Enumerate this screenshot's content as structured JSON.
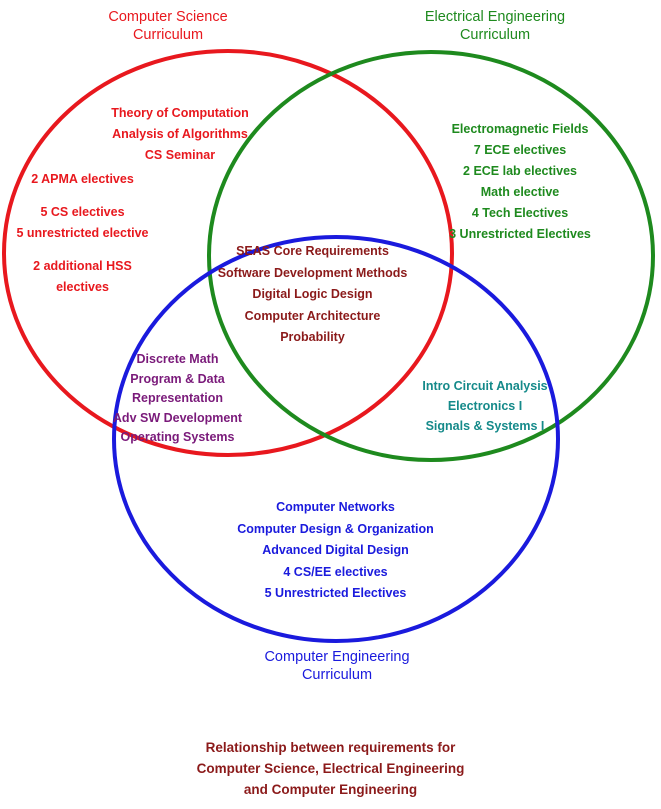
{
  "circles": {
    "cs": {
      "color": "#e8181e"
    },
    "ee": {
      "color": "#1e8a1e"
    },
    "ce": {
      "color": "#1a1add"
    }
  },
  "labels": {
    "cs": [
      "Computer Science",
      "Curriculum"
    ],
    "ee": [
      "Electrical Engineering",
      "Curriculum"
    ],
    "ce": [
      "Computer Engineering",
      "Curriculum"
    ]
  },
  "regions": {
    "cs_top": [
      "Theory of Computation",
      "Analysis of Algorithms",
      "CS Seminar"
    ],
    "cs_left": [
      "2 APMA electives",
      "",
      "5 CS electives",
      "5 unrestricted elective",
      "",
      "2 additional HSS",
      "electives"
    ],
    "ee_only": [
      "Electromagnetic Fields",
      "7 ECE electives",
      "2 ECE lab electives",
      "Math elective",
      "4 Tech Electives",
      "3 Unrestricted Electives"
    ],
    "center": [
      "SEAS Core Requirements",
      "Software Development Methods",
      "Digital Logic Design",
      "Computer Architecture",
      "Probability"
    ],
    "cs_ce": [
      "Discrete Math",
      "Program & Data",
      "Representation",
      "Adv SW Development",
      "Operating Systems"
    ],
    "ee_ce": [
      "Intro Circuit Analysis",
      "Electronics I",
      "Signals & Systems I"
    ],
    "ce_only": [
      "Computer Networks",
      "Computer Design & Organization",
      "Advanced Digital Design",
      "4 CS/EE electives",
      "5 Unrestricted Electives"
    ]
  },
  "caption": [
    "Relationship between requirements for",
    "Computer Science, Electrical Engineering",
    "and Computer Engineering"
  ]
}
